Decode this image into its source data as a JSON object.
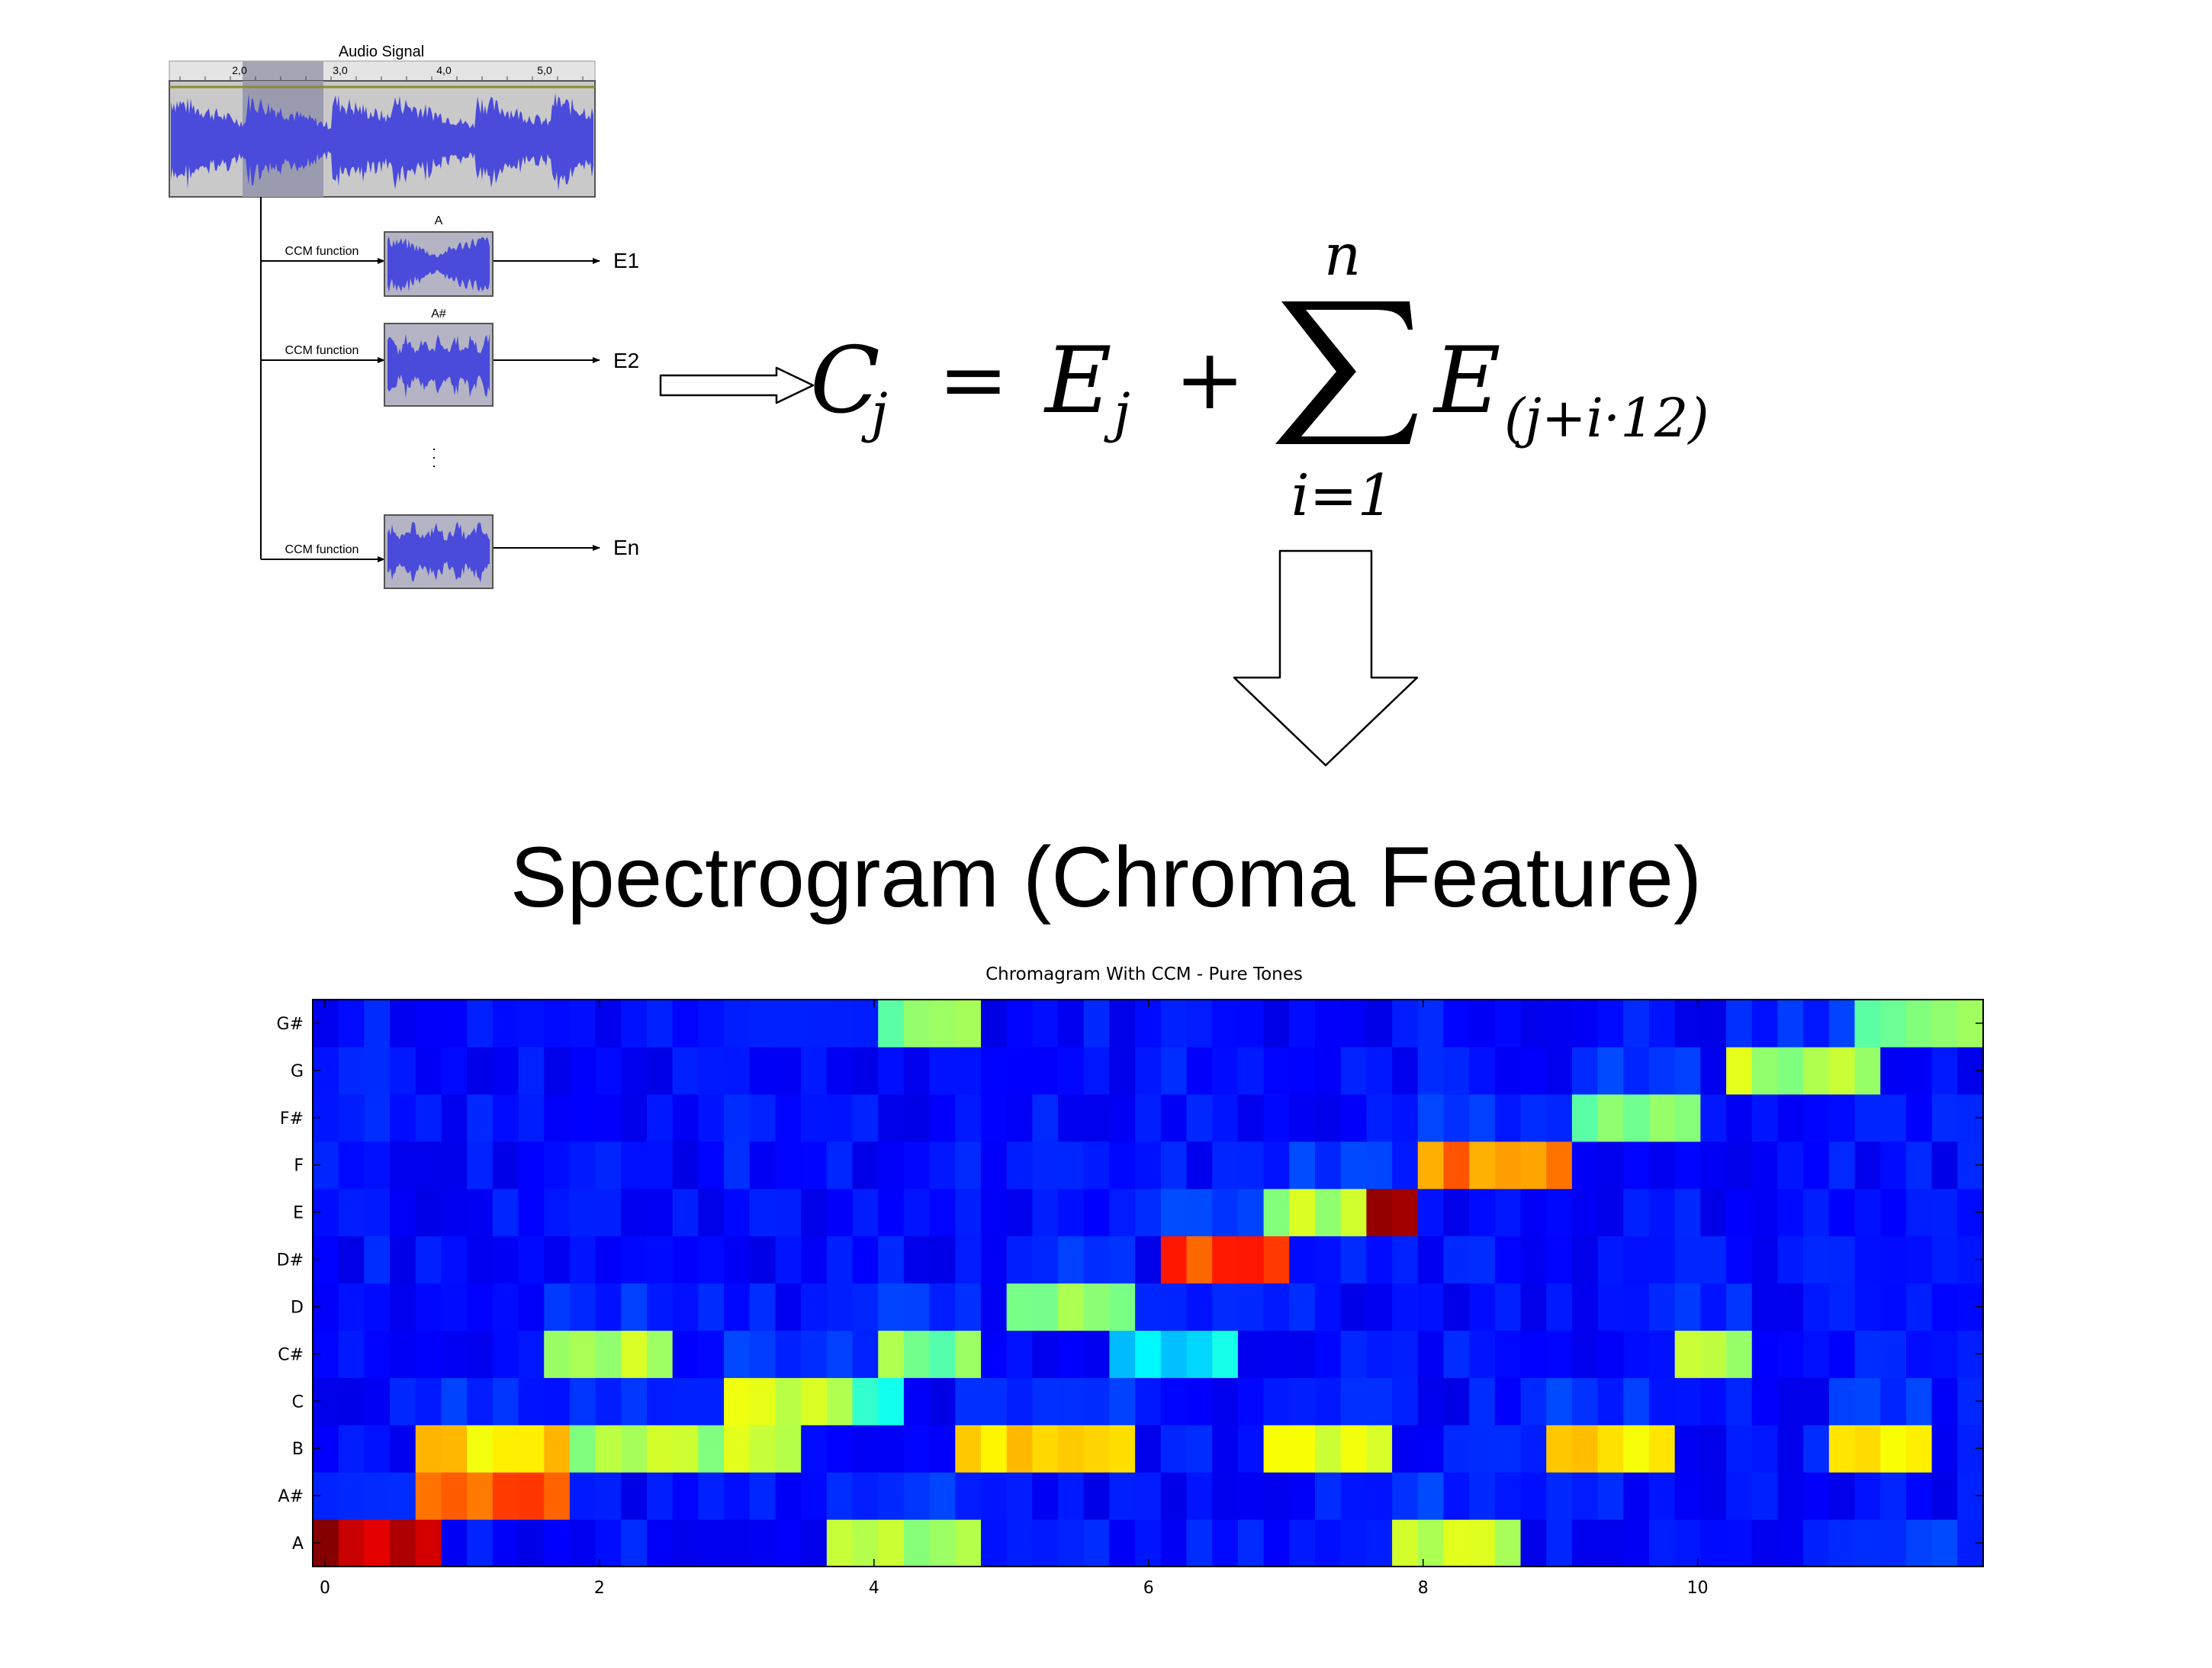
{
  "audio_panel": {
    "title": "Audio Signal",
    "ruler_ticks": [
      "2,0",
      "3,0",
      "4,0",
      "5,0"
    ]
  },
  "ccm_rows": [
    {
      "function_label": "CCM function",
      "note_label": "A",
      "output_label": "E1"
    },
    {
      "function_label": "CCM function",
      "note_label": "A#",
      "output_label": "E2"
    },
    {
      "function_label": "CCM function",
      "note_label": "",
      "output_label": "En"
    }
  ],
  "ellipsis": ". . .",
  "formula": {
    "lhs": "C",
    "lhs_sub": "j",
    "equals": "=",
    "term1": "E",
    "term1_sub": "j",
    "plus": "+",
    "sum_upper": "n",
    "sum_lower": "i=1",
    "term2": "E",
    "term2_sub": "(j+i·12)"
  },
  "main_title": "Spectrogram (Chroma Feature)",
  "colors": {
    "waveform": "#4a4adb",
    "waveform_bg": "#c8c8c8",
    "selection": "#9a9ab4"
  },
  "chart_data": {
    "type": "heatmap",
    "title": "Chromagram With CCM - Pure Tones",
    "y_categories": [
      "A",
      "A#",
      "B",
      "C",
      "C#",
      "D",
      "D#",
      "E",
      "F",
      "F#",
      "G",
      "G#"
    ],
    "x_ticks": [
      "0",
      "2",
      "4",
      "6",
      "8",
      "10"
    ],
    "xlim": [
      0,
      12
    ],
    "n_frames": 65,
    "colormap": "jet",
    "value_range": [
      0,
      1
    ],
    "note_sequence": [
      {
        "note": "A",
        "x_start": 0.0,
        "x_end": 0.9,
        "level": 0.95
      },
      {
        "note": "A#",
        "x_start": 0.9,
        "x_end": 1.7,
        "level": 0.8
      },
      {
        "note": "B",
        "x_start": 0.9,
        "x_end": 1.7,
        "level": 0.65
      },
      {
        "note": "C#",
        "x_start": 1.7,
        "x_end": 2.5,
        "level": 0.55
      },
      {
        "note": "B",
        "x_start": 2.0,
        "x_end": 3.5,
        "level": 0.55
      },
      {
        "note": "C",
        "x_start": 3.1,
        "x_end": 3.7,
        "level": 0.58
      },
      {
        "note": "C",
        "x_start": 3.7,
        "x_end": 4.2,
        "level": 0.4
      },
      {
        "note": "A",
        "x_start": 3.7,
        "x_end": 4.7,
        "level": 0.55
      },
      {
        "note": "C#",
        "x_start": 4.2,
        "x_end": 4.7,
        "level": 0.5
      },
      {
        "note": "G#",
        "x_start": 4.2,
        "x_end": 4.7,
        "level": 0.5
      },
      {
        "note": "B",
        "x_start": 4.8,
        "x_end": 5.8,
        "level": 0.65
      },
      {
        "note": "D",
        "x_start": 5.0,
        "x_end": 5.8,
        "level": 0.5
      },
      {
        "note": "C#",
        "x_start": 5.8,
        "x_end": 6.5,
        "level": 0.35
      },
      {
        "note": "D#",
        "x_start": 6.1,
        "x_end": 6.9,
        "level": 0.82
      },
      {
        "note": "B",
        "x_start": 6.9,
        "x_end": 7.6,
        "level": 0.62
      },
      {
        "note": "E",
        "x_start": 7.0,
        "x_end": 7.7,
        "level": 0.55
      },
      {
        "note": "E",
        "x_start": 7.7,
        "x_end": 7.9,
        "level": 0.95
      },
      {
        "note": "A",
        "x_start": 7.8,
        "x_end": 8.6,
        "level": 0.55
      },
      {
        "note": "F",
        "x_start": 8.1,
        "x_end": 8.9,
        "level": 0.75
      },
      {
        "note": "B",
        "x_start": 8.9,
        "x_end": 9.7,
        "level": 0.65
      },
      {
        "note": "F#",
        "x_start": 9.1,
        "x_end": 9.8,
        "level": 0.5
      },
      {
        "note": "C#",
        "x_start": 9.8,
        "x_end": 10.2,
        "level": 0.55
      },
      {
        "note": "G",
        "x_start": 10.2,
        "x_end": 11.1,
        "level": 0.55
      },
      {
        "note": "B",
        "x_start": 10.9,
        "x_end": 11.6,
        "level": 0.65
      },
      {
        "note": "G#",
        "x_start": 11.1,
        "x_end": 11.9,
        "level": 0.5
      }
    ]
  }
}
